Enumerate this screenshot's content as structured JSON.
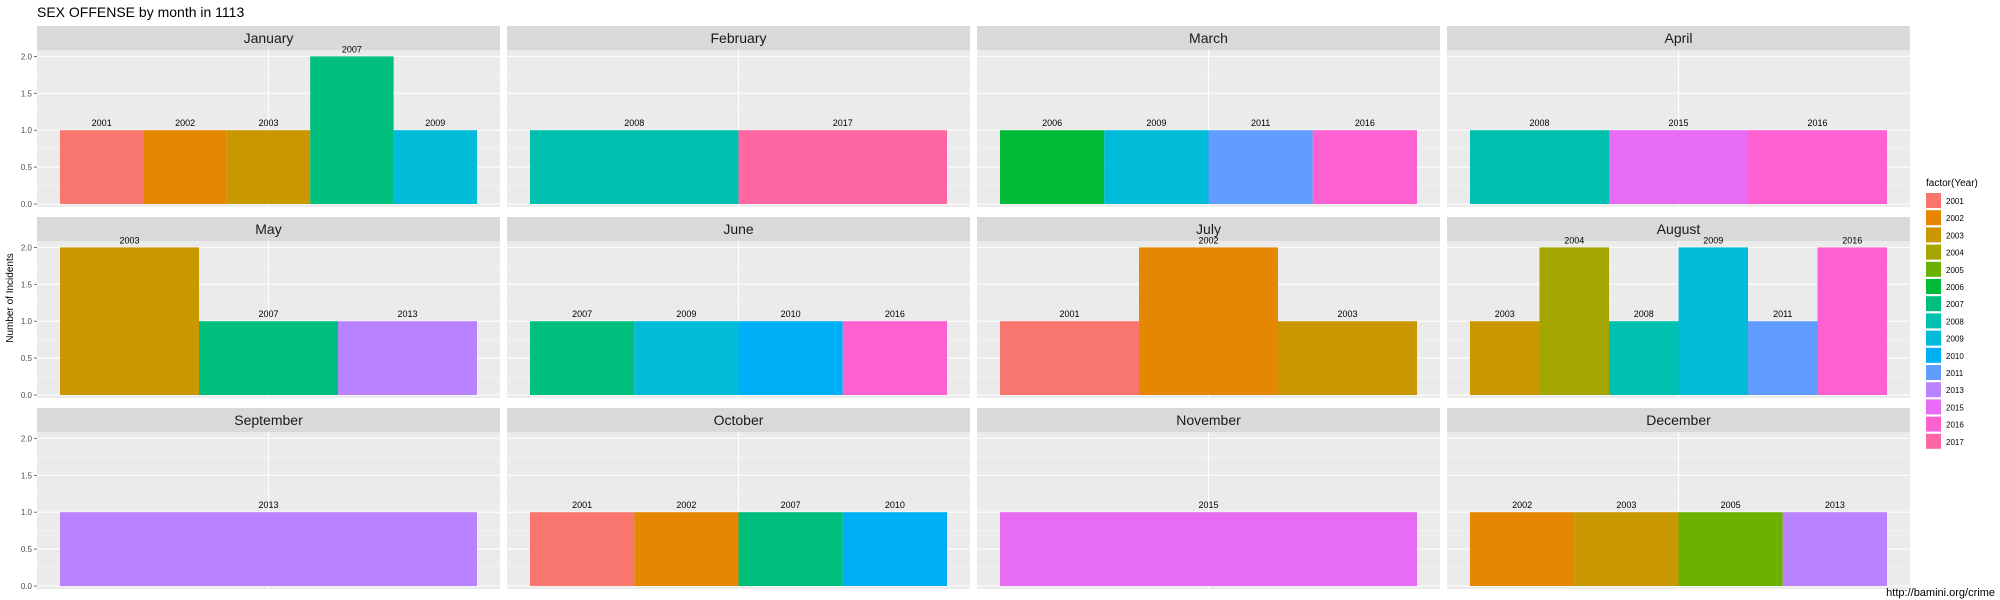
{
  "chart_data": {
    "type": "bar",
    "title": "SEX OFFENSE by month in 1113",
    "ylabel": "Number of Incidents",
    "xlabel": "",
    "ylim": [
      0,
      2.1
    ],
    "yticks": [
      "0.0",
      "0.5",
      "1.0",
      "1.5",
      "2.0"
    ],
    "ytick_values": [
      0,
      0.5,
      1.0,
      1.5,
      2.0
    ],
    "grid": true,
    "legend": {
      "title": "factor(Year)",
      "position": "right",
      "items": [
        {
          "year": "2001",
          "color": "#F8766D"
        },
        {
          "year": "2002",
          "color": "#E58700"
        },
        {
          "year": "2003",
          "color": "#C99800"
        },
        {
          "year": "2004",
          "color": "#A3A500"
        },
        {
          "year": "2005",
          "color": "#6BB100"
        },
        {
          "year": "2006",
          "color": "#00BA38"
        },
        {
          "year": "2007",
          "color": "#00BF7D"
        },
        {
          "year": "2008",
          "color": "#00C0AF"
        },
        {
          "year": "2009",
          "color": "#00BCD8"
        },
        {
          "year": "2010",
          "color": "#00B0F6"
        },
        {
          "year": "2011",
          "color": "#619CFF"
        },
        {
          "year": "2013",
          "color": "#B983FF"
        },
        {
          "year": "2015",
          "color": "#E76BF3"
        },
        {
          "year": "2016",
          "color": "#FD61D1"
        },
        {
          "year": "2017",
          "color": "#FF67A4"
        }
      ]
    },
    "panels": [
      {
        "month": "January",
        "bars": [
          {
            "year": "2001",
            "value": 1
          },
          {
            "year": "2002",
            "value": 1
          },
          {
            "year": "2003",
            "value": 1
          },
          {
            "year": "2007",
            "value": 2
          },
          {
            "year": "2009",
            "value": 1
          }
        ]
      },
      {
        "month": "February",
        "bars": [
          {
            "year": "2008",
            "value": 1
          },
          {
            "year": "2017",
            "value": 1
          }
        ]
      },
      {
        "month": "March",
        "bars": [
          {
            "year": "2006",
            "value": 1
          },
          {
            "year": "2009",
            "value": 1
          },
          {
            "year": "2011",
            "value": 1
          },
          {
            "year": "2016",
            "value": 1
          }
        ]
      },
      {
        "month": "April",
        "bars": [
          {
            "year": "2008",
            "value": 1
          },
          {
            "year": "2015",
            "value": 1
          },
          {
            "year": "2016",
            "value": 1
          }
        ]
      },
      {
        "month": "May",
        "bars": [
          {
            "year": "2003",
            "value": 2
          },
          {
            "year": "2007",
            "value": 1
          },
          {
            "year": "2013",
            "value": 1
          }
        ]
      },
      {
        "month": "June",
        "bars": [
          {
            "year": "2007",
            "value": 1
          },
          {
            "year": "2009",
            "value": 1
          },
          {
            "year": "2010",
            "value": 1
          },
          {
            "year": "2016",
            "value": 1
          }
        ]
      },
      {
        "month": "July",
        "bars": [
          {
            "year": "2001",
            "value": 1
          },
          {
            "year": "2002",
            "value": 2
          },
          {
            "year": "2003",
            "value": 1
          }
        ]
      },
      {
        "month": "August",
        "bars": [
          {
            "year": "2003",
            "value": 1
          },
          {
            "year": "2004",
            "value": 2
          },
          {
            "year": "2008",
            "value": 1
          },
          {
            "year": "2009",
            "value": 2
          },
          {
            "year": "2011",
            "value": 1
          },
          {
            "year": "2016",
            "value": 2
          }
        ]
      },
      {
        "month": "September",
        "bars": [
          {
            "year": "2013",
            "value": 1
          }
        ]
      },
      {
        "month": "October",
        "bars": [
          {
            "year": "2001",
            "value": 1
          },
          {
            "year": "2002",
            "value": 1
          },
          {
            "year": "2007",
            "value": 1
          },
          {
            "year": "2010",
            "value": 1
          }
        ]
      },
      {
        "month": "November",
        "bars": [
          {
            "year": "2015",
            "value": 1
          }
        ]
      },
      {
        "month": "December",
        "bars": [
          {
            "year": "2002",
            "value": 1
          },
          {
            "year": "2003",
            "value": 1
          },
          {
            "year": "2005",
            "value": 1
          },
          {
            "year": "2013",
            "value": 1
          }
        ]
      }
    ]
  },
  "caption": "http://bamini.org/crime"
}
